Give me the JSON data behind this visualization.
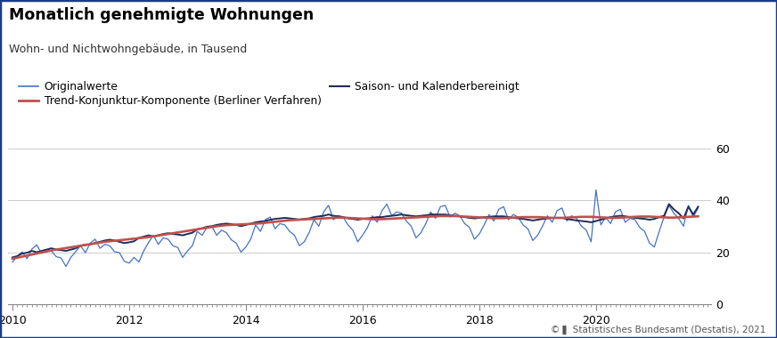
{
  "title": "Monatlich genehmigte Wohnungen",
  "subtitle": "Wohn- und Nichtwohngebäude, in Tausend",
  "copyright": "© ▌ Statistisches Bundesamt (Destatis), 2021",
  "yticks": [
    0,
    20,
    40,
    60
  ],
  "ylim": [
    0,
    65
  ],
  "xlim": [
    2009.92,
    2021.97
  ],
  "xtick_years": [
    2010,
    2012,
    2014,
    2016,
    2018,
    2020
  ],
  "color_original": "#4472C4",
  "color_trend": "#C0504D",
  "color_seasonal": "#1F2D5A",
  "bg_color": "#FFFFFF",
  "border_color": "#1a3a8a",
  "legend_items": [
    "Originalwerte",
    "Trend-Konjunktur-Komponente (Berliner Verfahren)",
    "Saison- und Kalenderbereinigt"
  ],
  "original": [
    16.2,
    18.5,
    20.1,
    17.5,
    21.2,
    22.8,
    19.5,
    21.0,
    20.5,
    18.3,
    17.8,
    14.5,
    18.0,
    20.2,
    22.5,
    19.8,
    23.5,
    25.0,
    21.5,
    23.0,
    22.5,
    20.2,
    19.8,
    16.5,
    15.8,
    18.0,
    16.2,
    20.5,
    23.8,
    26.5,
    23.0,
    25.5,
    25.0,
    22.5,
    21.8,
    18.0,
    20.5,
    22.5,
    28.0,
    26.5,
    29.5,
    30.0,
    26.5,
    28.5,
    27.5,
    24.8,
    23.5,
    20.0,
    22.0,
    25.0,
    30.5,
    28.0,
    32.5,
    33.5,
    29.0,
    31.0,
    30.5,
    28.0,
    26.5,
    22.5,
    24.0,
    27.5,
    32.5,
    30.0,
    35.5,
    38.0,
    32.5,
    34.0,
    33.5,
    30.5,
    28.5,
    24.0,
    26.5,
    29.5,
    34.0,
    31.5,
    36.0,
    38.5,
    34.0,
    35.5,
    35.0,
    32.0,
    30.0,
    25.5,
    27.5,
    31.0,
    35.5,
    33.0,
    37.5,
    38.0,
    33.5,
    35.0,
    34.0,
    31.0,
    29.5,
    25.0,
    27.0,
    30.5,
    34.5,
    32.0,
    36.5,
    37.5,
    32.5,
    34.5,
    33.5,
    30.5,
    29.0,
    24.5,
    26.5,
    30.0,
    34.0,
    31.5,
    36.0,
    37.0,
    32.0,
    34.0,
    33.0,
    30.0,
    28.5,
    24.0,
    44.0,
    30.5,
    33.5,
    31.0,
    35.5,
    36.5,
    31.5,
    33.0,
    32.5,
    29.5,
    28.0,
    23.5,
    22.0,
    28.0,
    33.5,
    38.0,
    35.0,
    33.0,
    30.0,
    38.0,
    33.5,
    37.0
  ],
  "trend": [
    17.5,
    17.9,
    18.3,
    18.7,
    19.1,
    19.5,
    19.9,
    20.3,
    20.7,
    21.0,
    21.3,
    21.6,
    21.9,
    22.2,
    22.5,
    22.8,
    23.1,
    23.4,
    23.7,
    24.0,
    24.2,
    24.4,
    24.6,
    24.8,
    25.0,
    25.2,
    25.4,
    25.6,
    25.8,
    26.1,
    26.4,
    26.7,
    27.0,
    27.3,
    27.6,
    27.9,
    28.2,
    28.5,
    28.8,
    29.1,
    29.4,
    29.7,
    30.0,
    30.2,
    30.4,
    30.5,
    30.6,
    30.7,
    30.8,
    30.9,
    31.0,
    31.1,
    31.3,
    31.5,
    31.7,
    31.9,
    32.1,
    32.3,
    32.4,
    32.5,
    32.6,
    32.7,
    32.8,
    32.9,
    33.0,
    33.1,
    33.2,
    33.3,
    33.3,
    33.2,
    33.1,
    33.0,
    32.9,
    32.8,
    32.7,
    32.7,
    32.7,
    32.8,
    32.9,
    33.0,
    33.1,
    33.2,
    33.3,
    33.4,
    33.5,
    33.6,
    33.7,
    33.8,
    33.9,
    33.9,
    33.9,
    33.9,
    33.8,
    33.7,
    33.6,
    33.5,
    33.4,
    33.3,
    33.2,
    33.1,
    33.1,
    33.1,
    33.2,
    33.3,
    33.4,
    33.5,
    33.5,
    33.5,
    33.5,
    33.4,
    33.3,
    33.2,
    33.2,
    33.2,
    33.3,
    33.4,
    33.5,
    33.6,
    33.6,
    33.6,
    33.5,
    33.4,
    33.3,
    33.2,
    33.2,
    33.3,
    33.4,
    33.5,
    33.6,
    33.7,
    33.7,
    33.7,
    33.6,
    33.5,
    33.4,
    33.3,
    33.3,
    33.4,
    33.5,
    33.6,
    33.7,
    33.8
  ],
  "seasonal": [
    18.0,
    18.5,
    19.5,
    19.8,
    20.5,
    20.0,
    20.5,
    21.0,
    21.5,
    21.0,
    20.8,
    20.5,
    21.0,
    21.5,
    22.5,
    22.8,
    23.0,
    23.5,
    24.0,
    24.5,
    24.8,
    24.5,
    24.0,
    23.5,
    23.8,
    24.2,
    25.5,
    26.0,
    26.5,
    26.0,
    26.5,
    27.0,
    27.3,
    27.0,
    26.8,
    26.5,
    27.0,
    27.5,
    28.8,
    29.2,
    29.8,
    30.0,
    30.5,
    30.8,
    31.0,
    30.8,
    30.5,
    30.0,
    30.5,
    31.0,
    31.5,
    31.8,
    32.0,
    32.5,
    32.8,
    33.0,
    33.2,
    33.0,
    32.8,
    32.5,
    32.8,
    33.0,
    33.5,
    33.8,
    34.0,
    34.5,
    34.0,
    33.8,
    33.5,
    33.0,
    32.8,
    32.5,
    32.8,
    33.0,
    33.2,
    33.5,
    33.5,
    33.8,
    34.0,
    34.2,
    34.5,
    34.2,
    34.0,
    33.8,
    34.0,
    34.2,
    34.5,
    34.5,
    34.5,
    34.5,
    34.2,
    34.0,
    33.8,
    33.5,
    33.2,
    33.0,
    33.2,
    33.5,
    33.5,
    33.8,
    33.8,
    33.8,
    33.5,
    33.2,
    33.0,
    32.8,
    32.5,
    32.2,
    32.5,
    32.8,
    33.0,
    33.2,
    33.2,
    33.2,
    32.8,
    32.5,
    32.2,
    32.0,
    31.8,
    31.5,
    32.0,
    32.5,
    33.0,
    33.5,
    33.8,
    34.0,
    33.8,
    33.5,
    33.2,
    33.0,
    32.8,
    32.5,
    32.8,
    33.5,
    34.0,
    38.5,
    36.5,
    35.0,
    33.0,
    37.5,
    34.5,
    37.5
  ]
}
